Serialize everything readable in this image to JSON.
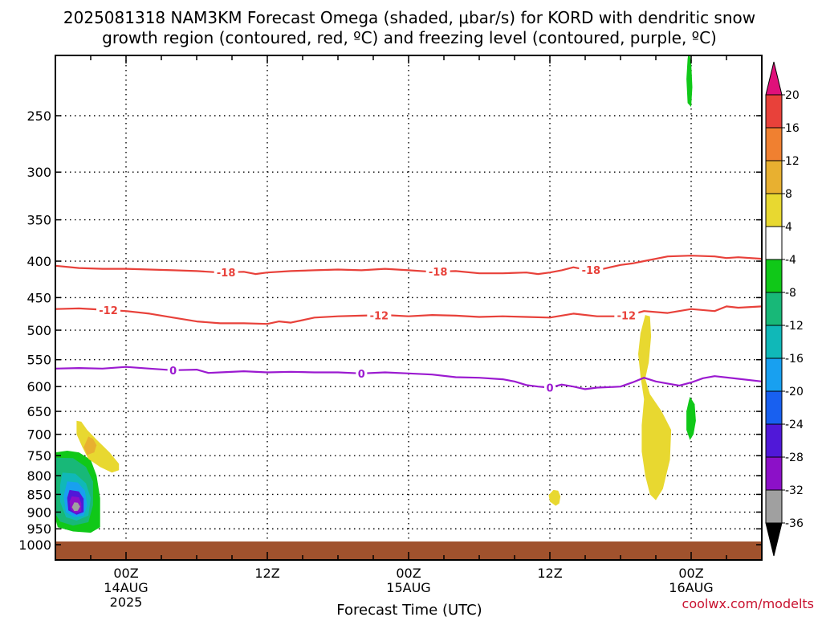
{
  "chart_data": {
    "type": "heatmap",
    "title_line1": "2025081318 NAM3KM Forecast Omega (shaded, μbar/s) for KORD with dendritic snow",
    "title_line2": "growth region (contoured, red, ºC) and freezing level (contoured, purple, ºC)",
    "xlabel": "Forecast Time (UTC)",
    "credit": "coolwx.com/modelts",
    "x_range_hours": [
      -6,
      54
    ],
    "y_range_hpa": [
      1030,
      200
    ],
    "x_ticks": [
      {
        "hour": 0,
        "label": "00Z",
        "sub1": "14AUG",
        "sub2": "2025"
      },
      {
        "hour": 12,
        "label": "12Z",
        "sub1": "",
        "sub2": ""
      },
      {
        "hour": 24,
        "label": "00Z",
        "sub1": "15AUG",
        "sub2": ""
      },
      {
        "hour": 36,
        "label": "12Z",
        "sub1": "",
        "sub2": ""
      },
      {
        "hour": 48,
        "label": "00Z",
        "sub1": "16AUG",
        "sub2": ""
      }
    ],
    "y_ticks": [
      {
        "p": 250,
        "label": "250"
      },
      {
        "p": 300,
        "label": "300"
      },
      {
        "p": 350,
        "label": "350"
      },
      {
        "p": 400,
        "label": "400"
      },
      {
        "p": 450,
        "label": "450"
      },
      {
        "p": 500,
        "label": "500"
      },
      {
        "p": 550,
        "label": "550"
      },
      {
        "p": 600,
        "label": "600"
      },
      {
        "p": 650,
        "label": "650"
      },
      {
        "p": 700,
        "label": "700"
      },
      {
        "p": 750,
        "label": "750"
      },
      {
        "p": 800,
        "label": "800"
      },
      {
        "p": 850,
        "label": "850"
      },
      {
        "p": 900,
        "label": "900"
      },
      {
        "p": 950,
        "label": "950"
      },
      {
        "p": 1000,
        "label": "1000"
      }
    ],
    "colorbar": {
      "levels": [
        {
          "label": "20",
          "color": "#e8413a"
        },
        {
          "label": "16",
          "color": "#f08030"
        },
        {
          "label": "12",
          "color": "#e8b030"
        },
        {
          "label": "8",
          "color": "#e8d830"
        },
        {
          "label": "4",
          "color": "#ffffff"
        },
        {
          "label": "-4",
          "color": "#10c818"
        },
        {
          "label": "-8",
          "color": "#18b878"
        },
        {
          "label": "-12",
          "color": "#10b8b8"
        },
        {
          "label": "-16",
          "color": "#18a0f0"
        },
        {
          "label": "-20",
          "color": "#1860f0"
        },
        {
          "label": "-24",
          "color": "#5018d8"
        },
        {
          "label": "-28",
          "color": "#8c10c8"
        },
        {
          "label": "-32",
          "color": "#a0a0a0"
        },
        {
          "label": "-36",
          "color": ""
        }
      ],
      "top_arrow_color": "#e0107a",
      "bottom_arrow_color": "#000000"
    },
    "ground_color": "#a0522d",
    "contours": [
      {
        "label": "-18",
        "color": "#e8413a",
        "label_hours": [
          8.5,
          26.5,
          39.5
        ],
        "points": [
          [
            -6,
            406
          ],
          [
            -4,
            409
          ],
          [
            -2,
            410
          ],
          [
            0,
            410
          ],
          [
            2,
            411
          ],
          [
            4,
            412
          ],
          [
            6,
            413
          ],
          [
            8,
            415
          ],
          [
            10,
            414
          ],
          [
            11,
            417
          ],
          [
            12,
            415
          ],
          [
            14,
            413
          ],
          [
            16,
            412
          ],
          [
            18,
            411
          ],
          [
            20,
            412
          ],
          [
            22,
            410
          ],
          [
            24,
            412
          ],
          [
            26,
            414
          ],
          [
            28,
            413
          ],
          [
            30,
            416
          ],
          [
            32,
            416
          ],
          [
            34,
            415
          ],
          [
            35,
            417
          ],
          [
            36,
            415
          ],
          [
            37,
            412
          ],
          [
            38,
            408
          ],
          [
            39,
            411
          ],
          [
            40,
            412
          ],
          [
            42,
            405
          ],
          [
            43,
            403
          ],
          [
            44,
            400
          ],
          [
            46,
            394
          ],
          [
            48,
            393
          ],
          [
            50,
            394
          ],
          [
            51,
            396
          ],
          [
            52,
            395
          ],
          [
            54,
            397
          ]
        ]
      },
      {
        "label": "-12",
        "color": "#e8413a",
        "label_hours": [
          -1.5,
          21.5,
          42.5
        ],
        "points": [
          [
            -6,
            467
          ],
          [
            -4,
            466
          ],
          [
            -2,
            468
          ],
          [
            0,
            470
          ],
          [
            2,
            474
          ],
          [
            4,
            480
          ],
          [
            6,
            486
          ],
          [
            8,
            489
          ],
          [
            10,
            489
          ],
          [
            12,
            490
          ],
          [
            13,
            486
          ],
          [
            14,
            488
          ],
          [
            15,
            484
          ],
          [
            16,
            480
          ],
          [
            18,
            478
          ],
          [
            20,
            477
          ],
          [
            22,
            476
          ],
          [
            24,
            478
          ],
          [
            26,
            476
          ],
          [
            28,
            477
          ],
          [
            30,
            479
          ],
          [
            32,
            478
          ],
          [
            34,
            479
          ],
          [
            36,
            480
          ],
          [
            38,
            474
          ],
          [
            40,
            478
          ],
          [
            42,
            478
          ],
          [
            43,
            475
          ],
          [
            44,
            470
          ],
          [
            46,
            473
          ],
          [
            48,
            467
          ],
          [
            50,
            470
          ],
          [
            51,
            463
          ],
          [
            52,
            465
          ],
          [
            54,
            463
          ]
        ]
      },
      {
        "label": "0",
        "color": "#9b1ad0",
        "label_hours": [
          4,
          20,
          36
        ],
        "points": [
          [
            -6,
            566
          ],
          [
            -4,
            565
          ],
          [
            -2,
            566
          ],
          [
            0,
            563
          ],
          [
            2,
            566
          ],
          [
            4,
            569
          ],
          [
            6,
            568
          ],
          [
            7,
            574
          ],
          [
            8,
            573
          ],
          [
            10,
            571
          ],
          [
            12,
            573
          ],
          [
            14,
            572
          ],
          [
            16,
            573
          ],
          [
            18,
            573
          ],
          [
            20,
            575
          ],
          [
            22,
            573
          ],
          [
            24,
            575
          ],
          [
            26,
            577
          ],
          [
            28,
            582
          ],
          [
            30,
            583
          ],
          [
            32,
            586
          ],
          [
            33,
            590
          ],
          [
            34,
            597
          ],
          [
            35,
            600
          ],
          [
            36,
            602
          ],
          [
            37,
            596
          ],
          [
            38,
            600
          ],
          [
            39,
            605
          ],
          [
            40,
            602
          ],
          [
            41,
            601
          ],
          [
            42,
            600
          ],
          [
            43,
            592
          ],
          [
            44,
            583
          ],
          [
            45,
            590
          ],
          [
            46,
            594
          ],
          [
            47,
            598
          ],
          [
            48,
            592
          ],
          [
            49,
            584
          ],
          [
            50,
            580
          ],
          [
            52,
            585
          ],
          [
            54,
            590
          ]
        ]
      }
    ],
    "shaded_regions": [
      {
        "value": "-4",
        "color": "#10c818",
        "points": [
          [
            -6,
            742
          ],
          [
            -5,
            738
          ],
          [
            -4,
            742
          ],
          [
            -3,
            760
          ],
          [
            -2.5,
            800
          ],
          [
            -2.2,
            860
          ],
          [
            -2.2,
            945
          ],
          [
            -3,
            962
          ],
          [
            -4.5,
            958
          ],
          [
            -5.8,
            945
          ],
          [
            -6,
            920
          ]
        ]
      },
      {
        "value": "-8",
        "color": "#18b878",
        "points": [
          [
            -6,
            755
          ],
          [
            -4.5,
            756
          ],
          [
            -3.4,
            778
          ],
          [
            -2.8,
            815
          ],
          [
            -2.8,
            880
          ],
          [
            -3.2,
            930
          ],
          [
            -4.5,
            940
          ],
          [
            -5.6,
            928
          ],
          [
            -6,
            905
          ]
        ]
      },
      {
        "value": "-12",
        "color": "#10b8b8",
        "points": [
          [
            -5.4,
            792
          ],
          [
            -4.3,
            795
          ],
          [
            -3.4,
            820
          ],
          [
            -3.0,
            860
          ],
          [
            -3.2,
            910
          ],
          [
            -4.2,
            925
          ],
          [
            -5.1,
            915
          ],
          [
            -5.6,
            870
          ],
          [
            -5.6,
            825
          ]
        ]
      },
      {
        "value": "-16",
        "color": "#18a0f0",
        "points": [
          [
            -5.0,
            815
          ],
          [
            -4.1,
            818
          ],
          [
            -3.5,
            840
          ],
          [
            -3.3,
            880
          ],
          [
            -3.6,
            910
          ],
          [
            -4.4,
            915
          ],
          [
            -5.1,
            900
          ],
          [
            -5.3,
            855
          ]
        ]
      },
      {
        "value": "-24",
        "color": "#5018d8",
        "points": [
          [
            -4.8,
            838
          ],
          [
            -4.0,
            842
          ],
          [
            -3.6,
            862
          ],
          [
            -3.6,
            900
          ],
          [
            -4.2,
            908
          ],
          [
            -4.9,
            895
          ],
          [
            -5.0,
            860
          ]
        ]
      },
      {
        "value": "-28",
        "color": "#8c10c8",
        "points": [
          [
            -4.6,
            855
          ],
          [
            -4.0,
            858
          ],
          [
            -3.8,
            875
          ],
          [
            -3.8,
            898
          ],
          [
            -4.3,
            903
          ],
          [
            -4.7,
            893
          ],
          [
            -4.8,
            870
          ]
        ]
      },
      {
        "value": "-32",
        "color": "#a0a0a0",
        "points": [
          [
            -4.4,
            872
          ],
          [
            -4.1,
            873
          ],
          [
            -3.9,
            884
          ],
          [
            -4.1,
            896
          ],
          [
            -4.4,
            897
          ],
          [
            -4.6,
            886
          ]
        ]
      },
      {
        "value": "8",
        "color": "#e8d830",
        "points": [
          [
            -4.2,
            670
          ],
          [
            -3.8,
            672
          ],
          [
            -3.3,
            690
          ],
          [
            -2.5,
            712
          ],
          [
            -1.4,
            742
          ],
          [
            -0.6,
            770
          ],
          [
            -0.6,
            786
          ],
          [
            -1.2,
            792
          ],
          [
            -2.2,
            778
          ],
          [
            -3.2,
            758
          ],
          [
            -3.7,
            730
          ],
          [
            -4.2,
            700
          ]
        ]
      },
      {
        "value": "12",
        "color": "#e8b030",
        "points": [
          [
            -3.2,
            705
          ],
          [
            -2.8,
            710
          ],
          [
            -2.5,
            725
          ],
          [
            -2.7,
            742
          ],
          [
            -3.3,
            748
          ],
          [
            -3.6,
            730
          ]
        ]
      },
      {
        "value": "8",
        "color": "#e8d830",
        "points": [
          [
            36.3,
            838
          ],
          [
            36.7,
            840
          ],
          [
            36.9,
            855
          ],
          [
            36.8,
            875
          ],
          [
            36.5,
            882
          ],
          [
            36.0,
            870
          ],
          [
            35.9,
            852
          ]
        ]
      },
      {
        "value": "8",
        "color": "#e8d830",
        "points": [
          [
            44.1,
            476
          ],
          [
            44.5,
            478
          ],
          [
            44.6,
            510
          ],
          [
            44.4,
            555
          ],
          [
            44.1,
            585
          ],
          [
            44.5,
            615
          ],
          [
            45.5,
            650
          ],
          [
            46.3,
            690
          ],
          [
            46.2,
            760
          ],
          [
            45.6,
            835
          ],
          [
            45.0,
            866
          ],
          [
            44.5,
            850
          ],
          [
            44.1,
            800
          ],
          [
            43.8,
            740
          ],
          [
            43.8,
            680
          ],
          [
            44.0,
            625
          ],
          [
            43.7,
            580
          ],
          [
            43.5,
            540
          ],
          [
            43.7,
            505
          ]
        ]
      },
      {
        "value": "-4",
        "color": "#10c818",
        "points": [
          [
            47.9,
            620
          ],
          [
            48.3,
            635
          ],
          [
            48.4,
            670
          ],
          [
            48.2,
            700
          ],
          [
            47.9,
            713
          ],
          [
            47.6,
            690
          ],
          [
            47.6,
            650
          ],
          [
            47.8,
            628
          ]
        ]
      },
      {
        "value": "-4",
        "color": "#10c818",
        "points": [
          [
            47.8,
            203
          ],
          [
            48.0,
            210
          ],
          [
            48.1,
            228
          ],
          [
            48.0,
            243
          ],
          [
            47.7,
            240
          ],
          [
            47.6,
            222
          ],
          [
            47.7,
            208
          ]
        ]
      }
    ]
  }
}
